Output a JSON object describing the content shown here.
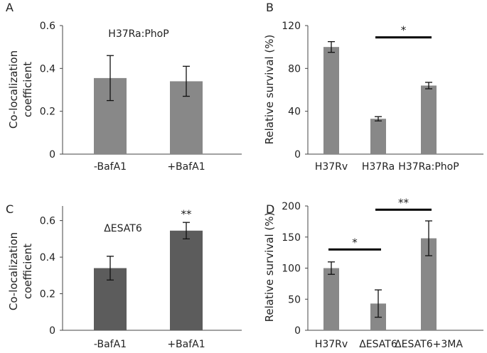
{
  "chart_data": [
    {
      "panel": "A",
      "type": "bar",
      "annotation": "H37Ra:PhoP",
      "ylabel": [
        "Co-localization",
        "coefficient"
      ],
      "ylim": [
        0,
        0.6
      ],
      "yticks": [
        0,
        0.2,
        0.4,
        0.6
      ],
      "ytick_labels": [
        "0",
        "0.2",
        "0.4",
        "0.6"
      ],
      "categories": [
        "-BafA1",
        "+BafA1"
      ],
      "values": [
        0.355,
        0.34
      ],
      "errors": [
        0.105,
        0.07
      ],
      "bar_color": "#888888",
      "significance": []
    },
    {
      "panel": "B",
      "type": "bar",
      "annotation": "",
      "ylabel": [
        "Relative survival (%)"
      ],
      "ylim": [
        0,
        120
      ],
      "yticks": [
        0,
        40,
        80,
        120
      ],
      "ytick_labels": [
        "0",
        "40",
        "80",
        "120"
      ],
      "categories": [
        "H37Rv",
        "H37Ra",
        "H37Ra:PhoP"
      ],
      "values": [
        100,
        33,
        64
      ],
      "errors": [
        5,
        2,
        3
      ],
      "bar_color": "#888888",
      "significance": [
        {
          "from": 1,
          "to": 2,
          "label": "*",
          "level": 109
        }
      ]
    },
    {
      "panel": "C",
      "type": "bar",
      "annotation": "ΔESAT6",
      "ylabel": [
        "Co-localization",
        "coefficient"
      ],
      "ylim": [
        0,
        0.68
      ],
      "yticks": [
        0,
        0.2,
        0.4,
        0.6
      ],
      "ytick_labels": [
        "0",
        "0.2",
        "0.4",
        "0.6"
      ],
      "categories": [
        "-BafA1",
        "+BafA1"
      ],
      "values": [
        0.34,
        0.545
      ],
      "errors": [
        0.065,
        0.045
      ],
      "bar_color": "#5c5c5c",
      "significance": [
        {
          "from": 1,
          "to": 1,
          "label": "**",
          "level": 0.615
        }
      ]
    },
    {
      "panel": "D",
      "type": "bar",
      "annotation": "",
      "ylabel": [
        "Relative survival (%)"
      ],
      "ylim": [
        0,
        200
      ],
      "yticks": [
        0,
        50,
        100,
        150,
        200
      ],
      "ytick_labels": [
        "0",
        "50",
        "100",
        "150",
        "200"
      ],
      "categories": [
        "H37Rv",
        "ΔESAT6",
        "ΔESAT6+3MA"
      ],
      "values": [
        100,
        43,
        148
      ],
      "errors": [
        10,
        22,
        28
      ],
      "bar_color": "#888888",
      "significance": [
        {
          "from": 0,
          "to": 1,
          "label": "*",
          "level": 130
        },
        {
          "from": 1,
          "to": 2,
          "label": "**",
          "level": 194
        }
      ]
    }
  ]
}
